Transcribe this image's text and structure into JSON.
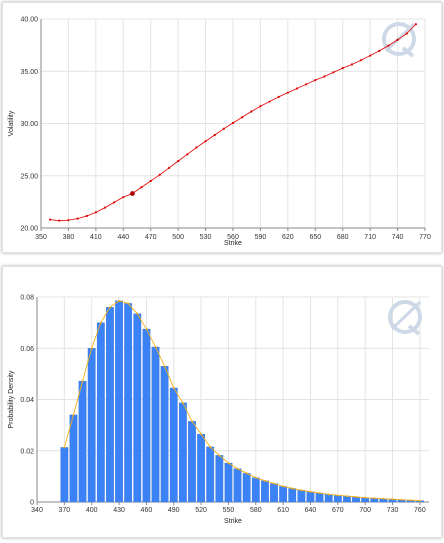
{
  "colors": {
    "volatility_line": "#e00000",
    "volatility_highlight": "#b00000",
    "bar_fill": "#3b82f6",
    "bar_stroke": "#2f6fd1",
    "density_curve": "#f2b11a",
    "watermark": "#cdd9e6"
  },
  "icons": {
    "watermark": "logo-watermark-icon"
  },
  "chart_data": [
    {
      "type": "line",
      "title": "",
      "xlabel": "Strike",
      "ylabel": "Volatility",
      "xlim": [
        350,
        770
      ],
      "ylim": [
        20.0,
        40.0
      ],
      "x_ticks": [
        "350",
        "380",
        "410",
        "440",
        "470",
        "500",
        "530",
        "560",
        "590",
        "620",
        "650",
        "680",
        "710",
        "740",
        "770"
      ],
      "y_ticks": [
        "20.00",
        "25.00",
        "30.00",
        "35.00",
        "40.00"
      ],
      "grid": true,
      "highlight": {
        "x": 450,
        "y": 23.3
      },
      "x": [
        360,
        370,
        380,
        390,
        400,
        410,
        420,
        430,
        440,
        450,
        460,
        470,
        480,
        490,
        500,
        510,
        520,
        530,
        540,
        550,
        560,
        570,
        580,
        590,
        600,
        610,
        620,
        630,
        640,
        650,
        660,
        670,
        680,
        690,
        700,
        710,
        720,
        730,
        740,
        750,
        760
      ],
      "y": [
        20.8,
        20.7,
        20.75,
        20.9,
        21.15,
        21.5,
        21.95,
        22.45,
        22.95,
        23.3,
        23.9,
        24.5,
        25.1,
        25.75,
        26.4,
        27.05,
        27.7,
        28.3,
        28.9,
        29.5,
        30.05,
        30.6,
        31.15,
        31.65,
        32.1,
        32.55,
        32.95,
        33.35,
        33.75,
        34.15,
        34.5,
        34.9,
        35.3,
        35.65,
        36.05,
        36.5,
        36.95,
        37.45,
        38.0,
        38.6,
        39.5
      ]
    },
    {
      "type": "bar",
      "title": "",
      "xlabel": "Strike",
      "ylabel": "Probability Density",
      "xlim": [
        340,
        770
      ],
      "ylim": [
        0,
        0.08
      ],
      "x_ticks": [
        "340",
        "370",
        "400",
        "430",
        "460",
        "490",
        "520",
        "550",
        "580",
        "610",
        "640",
        "670",
        "700",
        "730",
        "760"
      ],
      "y_ticks": [
        "0",
        "0.02",
        "0.04",
        "0.06",
        "0.08"
      ],
      "grid": true,
      "x": [
        370,
        380,
        390,
        400,
        410,
        420,
        430,
        440,
        450,
        460,
        470,
        480,
        490,
        500,
        510,
        520,
        530,
        540,
        550,
        560,
        570,
        580,
        590,
        600,
        610,
        620,
        630,
        640,
        650,
        660,
        670,
        680,
        690,
        700,
        710,
        720,
        730,
        740,
        750,
        760
      ],
      "values": [
        0.0213,
        0.034,
        0.0472,
        0.06,
        0.07,
        0.076,
        0.0785,
        0.0775,
        0.0735,
        0.0675,
        0.0605,
        0.053,
        0.0445,
        0.0387,
        0.0315,
        0.0265,
        0.0215,
        0.0182,
        0.0152,
        0.013,
        0.0112,
        0.0095,
        0.0083,
        0.0072,
        0.0061,
        0.0053,
        0.0046,
        0.004,
        0.0035,
        0.003,
        0.0026,
        0.0023,
        0.002,
        0.0017,
        0.0015,
        0.0013,
        0.0011,
        0.0009,
        0.0007,
        0.0005
      ]
    }
  ]
}
